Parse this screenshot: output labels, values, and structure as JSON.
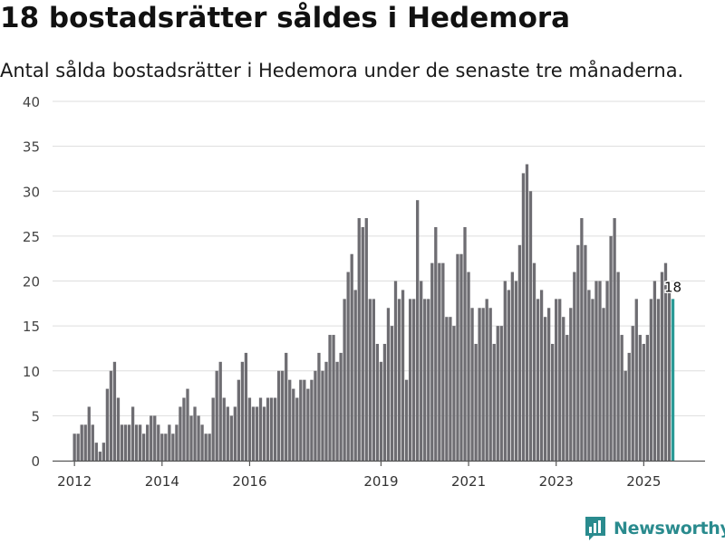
{
  "title": "18 bostadsrätter såldes i Hedemora",
  "subtitle": "Antal sålda bostadsrätter i Hedemora under de senaste tre månaderna.",
  "brand": {
    "name": "Newsworthy",
    "icon": "newsworthy-logo-icon",
    "color": "#2a8b8e"
  },
  "colors": {
    "bar": "#6e6d72",
    "highlight": "#2a9a96",
    "grid": "#dddddd",
    "axis": "#555555"
  },
  "chart_data": {
    "type": "bar",
    "title": "18 bostadsrätter såldes i Hedemora",
    "xlabel": "",
    "ylabel": "",
    "ylim": [
      0,
      40
    ],
    "yticks": [
      0,
      5,
      10,
      15,
      20,
      25,
      30,
      35,
      40
    ],
    "xlim": [
      2011.5,
      2026.4
    ],
    "xticks": [
      2012,
      2014,
      2016,
      2019,
      2021,
      2023,
      2025
    ],
    "start": 2012.0,
    "step": 0.08333,
    "values": [
      3,
      3,
      4,
      4,
      6,
      4,
      2,
      1,
      2,
      8,
      10,
      11,
      7,
      4,
      4,
      4,
      6,
      4,
      4,
      3,
      4,
      5,
      5,
      4,
      3,
      3,
      4,
      3,
      4,
      6,
      7,
      8,
      5,
      6,
      5,
      4,
      3,
      3,
      7,
      10,
      11,
      7,
      6,
      5,
      6,
      9,
      11,
      12,
      7,
      6,
      6,
      7,
      6,
      7,
      7,
      7,
      10,
      10,
      12,
      9,
      8,
      7,
      9,
      9,
      8,
      9,
      10,
      12,
      10,
      11,
      14,
      14,
      11,
      12,
      18,
      21,
      23,
      19,
      27,
      26,
      27,
      18,
      18,
      13,
      11,
      13,
      17,
      15,
      20,
      18,
      19,
      9,
      18,
      18,
      29,
      20,
      18,
      18,
      22,
      26,
      22,
      22,
      16,
      16,
      15,
      23,
      23,
      26,
      21,
      17,
      13,
      17,
      17,
      18,
      17,
      13,
      15,
      15,
      20,
      19,
      21,
      20,
      24,
      32,
      33,
      30,
      22,
      18,
      19,
      16,
      17,
      13,
      18,
      18,
      16,
      14,
      17,
      21,
      24,
      27,
      24,
      19,
      18,
      20,
      20,
      17,
      20,
      25,
      27,
      21,
      14,
      10,
      12,
      15,
      18,
      14,
      13,
      14,
      18,
      20,
      18,
      21,
      22,
      19,
      18
    ],
    "highlight_index": 164,
    "highlight_label": "18"
  }
}
